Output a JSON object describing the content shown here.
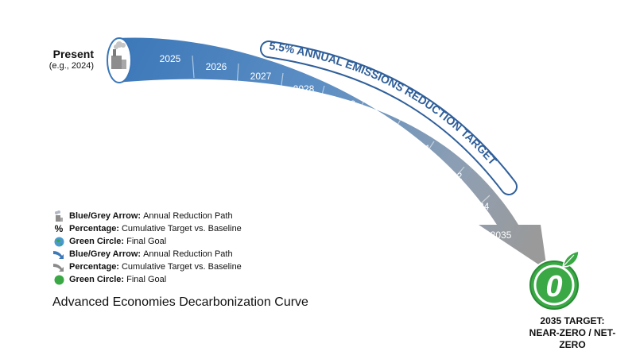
{
  "present": {
    "title": "Present",
    "subtitle": "(e.g., 2024)"
  },
  "years": [
    "2025",
    "2026",
    "2027",
    "2028",
    "2029",
    "2030",
    "2031",
    "2032",
    "2034",
    "2035"
  ],
  "banner": "5.5% ANNUAL EMISSIONS REDUCTION TARGET",
  "goal_glyph": "0",
  "target": {
    "line1": "2035 TARGET:",
    "line2": "NEAR-ZERO / NET-ZERO"
  },
  "legend": [
    {
      "icon": "factory-icon",
      "key": "Blue/Grey Arrow:",
      "text": "Annual Reduction Path"
    },
    {
      "icon": "percent-icon",
      "key": "Percentage:",
      "text": "Cumulative Target vs. Baseline"
    },
    {
      "icon": "globe-icon",
      "key": "Green Circle:",
      "text": "Final Goal"
    },
    {
      "icon": "blue-arrow-icon",
      "key": "Blue/Grey Arrow:",
      "text": "Annual Reduction Path"
    },
    {
      "icon": "grey-arrow-icon",
      "key": "Percentage:",
      "text": "Cumulative Target vs. Baseline"
    },
    {
      "icon": "green-circle-icon",
      "key": "Green Circle:",
      "text": "Final Goal"
    }
  ],
  "percent_symbol": "%",
  "title": "Advanced Economies Decarbonization Curve",
  "colors": {
    "arrow_start": "#3d78b8",
    "arrow_end": "#9a9a9a",
    "banner_text": "#2f5f9a",
    "goal_green": "#3aa845",
    "goal_dark": "#1f6b2a"
  }
}
